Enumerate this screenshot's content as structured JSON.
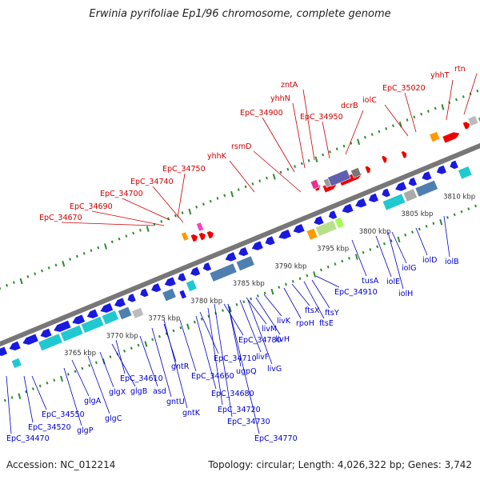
{
  "title": "Erwinia pyrifoliae Ep1/96 chromosome, complete genome",
  "footer": {
    "accession": "Accession: NC_012214",
    "summary": "Topology: circular; Length: 4,026,322 bp; Genes: 3,742"
  },
  "colors": {
    "backbone": "#777777",
    "tick_green": "#2e8b2e",
    "plus_label": "#cc0000",
    "minus_label": "#0000cc",
    "forward_gene": "#ee0000",
    "reverse_gene": "#1a1adf",
    "operon_cyan": "#20c8d0",
    "operon_steel": "#4f7fb0"
  },
  "scale_labels": [
    "3765 kbp",
    "3770 kbp",
    "3775 kbp",
    "3780 kbp",
    "3785 kbp",
    "3790 kbp",
    "3795 kbp",
    "3800 kbp",
    "3805 kbp",
    "3810 kbp"
  ],
  "top_labels": [
    "EpC_34670",
    "EpC_34690",
    "EpC_34700",
    "EpC_34740",
    "EpC_34750",
    "yhhK",
    "rsmD",
    "EpC_34900",
    "yhhN",
    "zntA",
    "EpC_34950",
    "dcrB",
    "iolC",
    "EpC_35020",
    "yhhT",
    "rtn"
  ],
  "bottom_labels": [
    "EpC_34470",
    "EpC_34520",
    "EpC_34550",
    "glgP",
    "glgA",
    "glgC",
    "glgX",
    "glgB",
    "EpC_34610",
    "asd",
    "gntU",
    "gntK",
    "gntR",
    "EpC_34660",
    "EpC_34680",
    "EpC_34710",
    "EpC_34720",
    "EpC_34730",
    "EpC_34770",
    "EpC_34780",
    "ugpQ",
    "livF",
    "livG",
    "livM",
    "livH",
    "livK",
    "rpoH",
    "ftsX",
    "ftsE",
    "ftsY",
    "EpC_34910",
    "tusA",
    "iolE",
    "iolH",
    "iolG",
    "iolD",
    "iolB"
  ]
}
